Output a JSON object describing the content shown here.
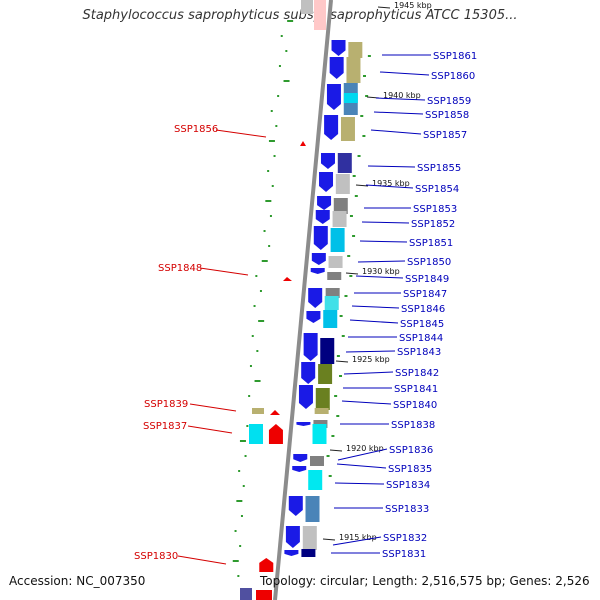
{
  "title": "Staphylococcus saprophyticus subsp. saprophyticus ATCC 15305...",
  "footer": {
    "accession": "Accession: NC_007350",
    "summary": "Topology: circular; Length: 2,516,575 bp; Genes: 2,526"
  },
  "colors": {
    "backbone": "#8c8c8c",
    "forward_label": "#0000bb",
    "reverse_label": "#d40000",
    "gc_tick": "#2e9a2e",
    "blue_gene": "#1a1ae6"
  },
  "kbp_markers": [
    "1945 kbp",
    "1940 kbp",
    "1935 kbp",
    "1930 kbp",
    "1925 kbp",
    "1920 kbp",
    "1915 kbp"
  ],
  "forward_genes": [
    "SSP1861",
    "SSP1860",
    "SSP1859",
    "SSP1858",
    "SSP1857",
    "SSP1855",
    "SSP1854",
    "SSP1853",
    "SSP1852",
    "SSP1851",
    "SSP1850",
    "SSP1849",
    "SSP1847",
    "SSP1846",
    "SSP1845",
    "SSP1844",
    "SSP1843",
    "SSP1842",
    "SSP1841",
    "SSP1840",
    "SSP1838",
    "SSP1836",
    "SSP1835",
    "SSP1834",
    "SSP1833",
    "SSP1832",
    "SSP1831"
  ],
  "reverse_genes": [
    "SSP1856",
    "SSP1848",
    "SSP1839",
    "SSP1837",
    "SSP1830"
  ]
}
